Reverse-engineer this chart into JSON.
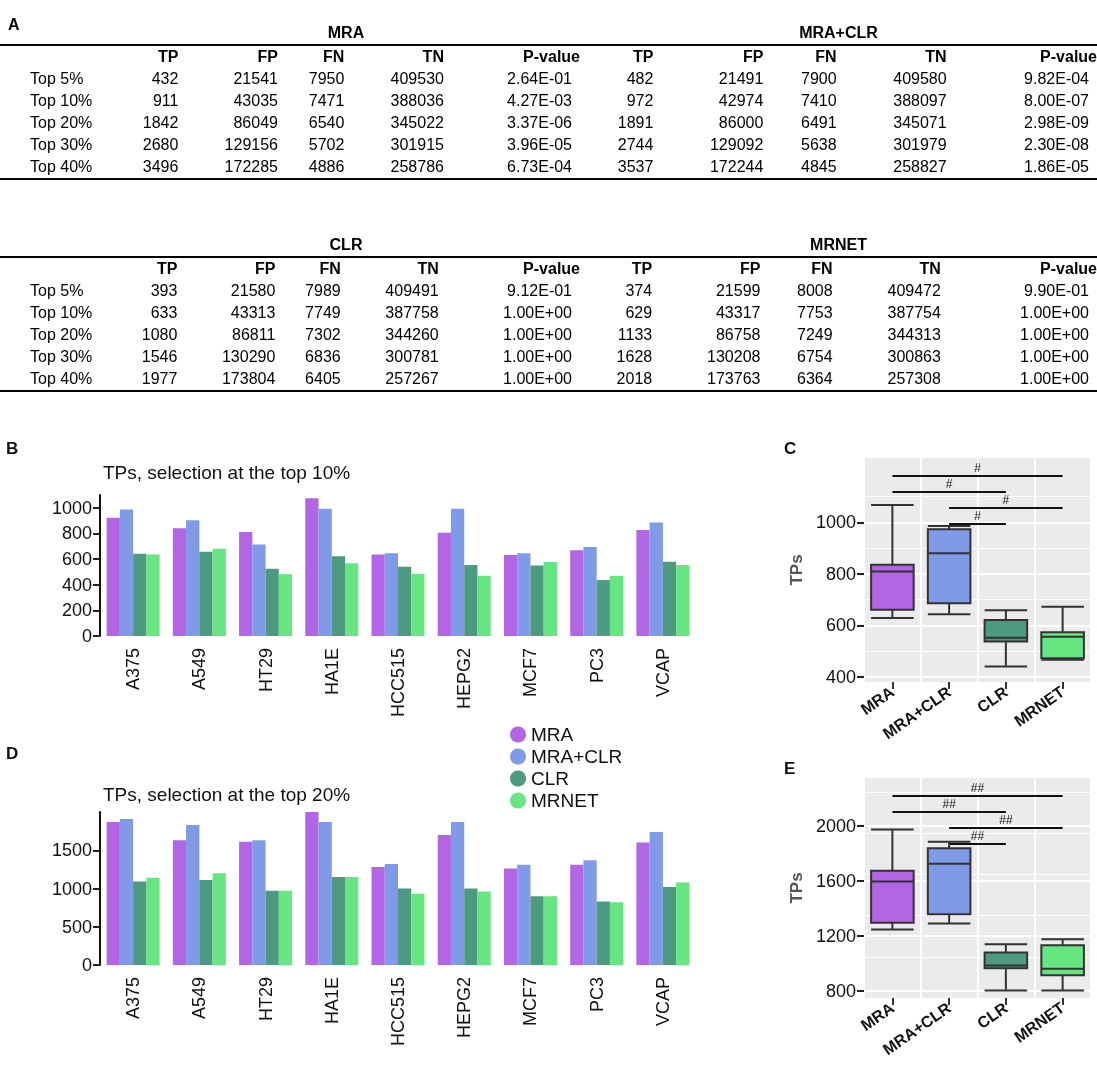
{
  "chart_data": [
    {
      "type": "other",
      "title": "MRA",
      "annotations": [
        "A"
      ],
      "categories": [
        "TP",
        "FP",
        "FN",
        "TN",
        "P-value"
      ],
      "y_categories": [
        "Top 5%",
        "Top 10%",
        "Top 20%",
        "Top 30%",
        "Top 40%"
      ],
      "cell_labels": [
        [
          "432",
          "21541",
          "7950",
          "409530",
          "2.64E-01"
        ],
        [
          "911",
          "43035",
          "7471",
          "388036",
          "4.27E-03"
        ],
        [
          "1842",
          "86049",
          "6540",
          "345022",
          "3.37E-06"
        ],
        [
          "2680",
          "129156",
          "5702",
          "301915",
          "3.96E-05"
        ],
        [
          "3496",
          "172285",
          "4886",
          "258786",
          "6.73E-04"
        ]
      ]
    },
    {
      "type": "other",
      "title": "MRA+CLR",
      "categories": [
        "TP",
        "FP",
        "FN",
        "TN",
        "P-value"
      ],
      "cell_labels": [
        [
          "482",
          "21491",
          "7900",
          "409580",
          "9.82E-04"
        ],
        [
          "972",
          "42974",
          "7410",
          "388097",
          "8.00E-07"
        ],
        [
          "1891",
          "86000",
          "6491",
          "345071",
          "2.98E-09"
        ],
        [
          "2744",
          "129092",
          "5638",
          "301979",
          "2.30E-08"
        ],
        [
          "3537",
          "172244",
          "4845",
          "258827",
          "1.86E-05"
        ]
      ]
    },
    {
      "type": "other",
      "title": "CLR",
      "categories": [
        "TP",
        "FP",
        "FN",
        "TN",
        "P-value"
      ],
      "y_categories": [
        "Top 5%",
        "Top 10%",
        "Top 20%",
        "Top 30%",
        "Top 40%"
      ],
      "cell_labels": [
        [
          "393",
          "21580",
          "7989",
          "409491",
          "9.12E-01"
        ],
        [
          "633",
          "43313",
          "7749",
          "387758",
          "1.00E+00"
        ],
        [
          "1080",
          "86811",
          "7302",
          "344260",
          "1.00E+00"
        ],
        [
          "1546",
          "130290",
          "6836",
          "300781",
          "1.00E+00"
        ],
        [
          "1977",
          "173804",
          "6405",
          "257267",
          "1.00E+00"
        ]
      ]
    },
    {
      "type": "other",
      "title": "MRNET",
      "categories": [
        "TP",
        "FP",
        "FN",
        "TN",
        "P-value"
      ],
      "cell_labels": [
        [
          "374",
          "21599",
          "8008",
          "409472",
          "9.90E-01"
        ],
        [
          "629",
          "43317",
          "7753",
          "387754",
          "1.00E+00"
        ],
        [
          "1133",
          "86758",
          "7249",
          "344313",
          "1.00E+00"
        ],
        [
          "1628",
          "130208",
          "6754",
          "300863",
          "1.00E+00"
        ],
        [
          "2018",
          "173763",
          "6364",
          "257308",
          "1.00E+00"
        ]
      ]
    },
    {
      "type": "bar",
      "title": "TPs, selection at the top 10%",
      "annotations": [
        "B"
      ],
      "categories": [
        "A375",
        "A549",
        "HT29",
        "HA1E",
        "HCC515",
        "HEPG2",
        "MCF7",
        "PC3",
        "VCAP"
      ],
      "ylim": [
        0,
        1100
      ],
      "yticks": [
        0,
        200,
        400,
        600,
        800,
        1000
      ],
      "grid": false,
      "legend": false,
      "series": [
        {
          "color": "#b266e6",
          "values": [
            922,
            840,
            811,
            1075,
            635,
            805,
            632,
            668,
            827
          ]
        },
        {
          "color": "#7f9ae6",
          "values": [
            986,
            902,
            713,
            993,
            645,
            993,
            645,
            694,
            886
          ]
        },
        {
          "color": "#4c9a80",
          "values": [
            642,
            658,
            524,
            622,
            541,
            554,
            550,
            436,
            580
          ]
        },
        {
          "color": "#66e680",
          "values": [
            635,
            681,
            482,
            567,
            485,
            469,
            577,
            469,
            554
          ]
        }
      ]
    },
    {
      "type": "box",
      "annotations": [
        "C",
        "#",
        "#",
        "#",
        "#"
      ],
      "ylabel": "TPs",
      "categories": [
        "MRA",
        "MRA+CLR",
        "CLR",
        "MRNET"
      ],
      "colors": [
        "#b266e6",
        "#7f9ae6",
        "#4c9a80",
        "#66e680"
      ],
      "ylim": [
        380,
        1250
      ],
      "yticks": [
        400,
        600,
        800,
        1000
      ],
      "grid": true,
      "boxes": [
        {
          "low": 629,
          "q1": 661,
          "median": 809,
          "q3": 835,
          "high": 1067
        },
        {
          "low": 643,
          "q1": 686,
          "median": 880,
          "q3": 973,
          "high": 986
        },
        {
          "low": 440,
          "q1": 537,
          "median": 552,
          "q3": 621,
          "high": 659
        },
        {
          "low": 466,
          "q1": 472,
          "median": 556,
          "q3": 573,
          "high": 672
        }
      ]
    },
    {
      "type": "bar",
      "title": "TPs, selection at the top 20%",
      "annotations": [
        "D"
      ],
      "categories": [
        "A375",
        "A549",
        "HT29",
        "HA1E",
        "HCC515",
        "HEPG2",
        "MCF7",
        "PC3",
        "VCAP"
      ],
      "ylim": [
        0,
        2000
      ],
      "yticks": [
        0,
        500,
        1000,
        1500
      ],
      "grid": false,
      "legend": "top right",
      "series": [
        {
          "name": "MRA",
          "color": "#b266e6",
          "values": [
            1870,
            1630,
            1610,
            2000,
            1280,
            1700,
            1260,
            1310,
            1600
          ]
        },
        {
          "name": "MRA+CLR",
          "color": "#7f9ae6",
          "values": [
            1910,
            1830,
            1630,
            1870,
            1320,
            1870,
            1310,
            1370,
            1740
          ]
        },
        {
          "name": "CLR",
          "color": "#4c9a80",
          "values": [
            1090,
            1110,
            970,
            1150,
            1000,
            1000,
            900,
            830,
            1020
          ]
        },
        {
          "name": "MRNET",
          "color": "#66e680",
          "values": [
            1140,
            1200,
            970,
            1150,
            930,
            960,
            900,
            820,
            1080
          ]
        }
      ]
    },
    {
      "type": "box",
      "annotations": [
        "E",
        "##",
        "##",
        "##",
        "##"
      ],
      "ylabel": "TPs",
      "categories": [
        "MRA",
        "MRA+CLR",
        "CLR",
        "MRNET"
      ],
      "colors": [
        "#b266e6",
        "#7f9ae6",
        "#4c9a80",
        "#66e680"
      ],
      "ylim": [
        750,
        2350
      ],
      "yticks": [
        800,
        1200,
        1600,
        2000
      ],
      "grid": true,
      "boxes": [
        {
          "low": 1249,
          "q1": 1297,
          "median": 1597,
          "q3": 1676,
          "high": 1976
        },
        {
          "low": 1292,
          "q1": 1359,
          "median": 1726,
          "q3": 1839,
          "high": 1887
        },
        {
          "low": 805,
          "q1": 966,
          "median": 987,
          "q3": 1081,
          "high": 1141
        },
        {
          "low": 805,
          "q1": 915,
          "median": 963,
          "q3": 1134,
          "high": 1177
        }
      ]
    }
  ]
}
